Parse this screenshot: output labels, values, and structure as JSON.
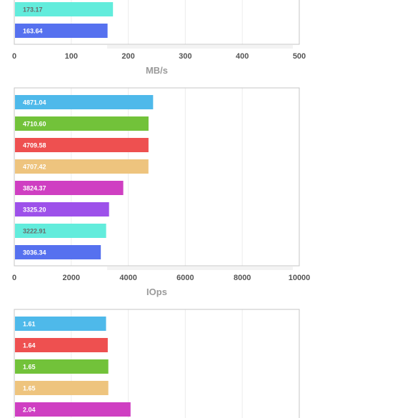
{
  "chart_data": [
    {
      "type": "bar",
      "orientation": "horizontal",
      "xlabel": "MB/s",
      "xlim": [
        0,
        500
      ],
      "xticks": [
        "0",
        "100",
        "200",
        "300",
        "400",
        "500"
      ],
      "grid": true,
      "bars": [
        {
          "label": "173.17",
          "value": 173.17,
          "color": "#62ecdc",
          "text_color": "#6a6a6a"
        },
        {
          "label": "163.64",
          "value": 163.64,
          "color": "#5671ef",
          "text_color": "#ffffff"
        }
      ]
    },
    {
      "type": "bar",
      "orientation": "horizontal",
      "xlabel": "IOps",
      "xlim": [
        0,
        10000
      ],
      "xticks": [
        "0",
        "2000",
        "4000",
        "6000",
        "8000",
        "10000"
      ],
      "grid": true,
      "bars": [
        {
          "label": "4871.04",
          "value": 4871.04,
          "color": "#4eb9ea",
          "text_color": "#ffffff"
        },
        {
          "label": "4710.60",
          "value": 4710.6,
          "color": "#72c23a",
          "text_color": "#ffffff"
        },
        {
          "label": "4709.58",
          "value": 4709.58,
          "color": "#ee5050",
          "text_color": "#ffffff"
        },
        {
          "label": "4707.42",
          "value": 4707.42,
          "color": "#eec47e",
          "text_color": "#ffffff"
        },
        {
          "label": "3824.37",
          "value": 3824.37,
          "color": "#cf3fc2",
          "text_color": "#ffffff"
        },
        {
          "label": "3325.20",
          "value": 3325.2,
          "color": "#9d51ea",
          "text_color": "#ffffff"
        },
        {
          "label": "3222.91",
          "value": 3222.91,
          "color": "#62ecdc",
          "text_color": "#6a6a6a"
        },
        {
          "label": "3036.34",
          "value": 3036.34,
          "color": "#5671ef",
          "text_color": "#ffffff"
        }
      ]
    },
    {
      "type": "bar",
      "orientation": "horizontal",
      "xlabel": "",
      "xlim": [
        0,
        5
      ],
      "grid": true,
      "bars": [
        {
          "label": "1.61",
          "value": 1.61,
          "color": "#4eb9ea",
          "text_color": "#ffffff"
        },
        {
          "label": "1.64",
          "value": 1.64,
          "color": "#ee5050",
          "text_color": "#ffffff"
        },
        {
          "label": "1.65",
          "value": 1.65,
          "color": "#72c23a",
          "text_color": "#ffffff"
        },
        {
          "label": "1.65",
          "value": 1.65,
          "color": "#eec47e",
          "text_color": "#ffffff"
        },
        {
          "label": "2.04",
          "value": 2.04,
          "color": "#cf3fc2",
          "text_color": "#ffffff"
        }
      ]
    }
  ]
}
